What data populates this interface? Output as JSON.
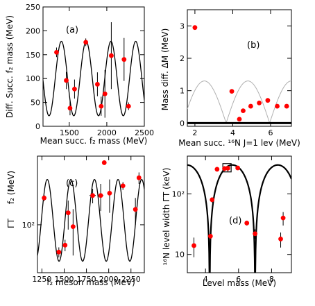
{
  "colors": {
    "points": "#ff0000",
    "curve": "#000000",
    "curve_light": "#b0b0b0",
    "errorbars": "#000000"
  },
  "chart_data": [
    {
      "id": "a",
      "type": "scatter",
      "panel_label": "(a)",
      "xlabel": "Mean succ. f₂ mass (MeV)",
      "ylabel": "Diff. Succ. f₂ mass (MeV)",
      "xlim": [
        1150,
        2500
      ],
      "ylim": [
        0,
        250
      ],
      "xticks": [
        1500,
        2000,
        2500
      ],
      "xtick_labels": [
        "1500",
        "2000",
        "2500"
      ],
      "yticks": [
        0,
        50,
        100,
        150,
        200,
        250
      ],
      "ytick_labels": [
        "0",
        "50",
        "100",
        "150",
        "200",
        "250"
      ],
      "curve": {
        "style": "dark",
        "kind": "cosine",
        "mid": 100,
        "amp": 78,
        "period": 330,
        "phase_x": 1725
      },
      "points": [
        {
          "x": 1330,
          "y": 155,
          "err": 10
        },
        {
          "x": 1460,
          "y": 96,
          "err": 18
        },
        {
          "x": 1510,
          "y": 38,
          "err": 15
        },
        {
          "x": 1570,
          "y": 78,
          "err": 20
        },
        {
          "x": 1720,
          "y": 176,
          "err": 8
        },
        {
          "x": 1875,
          "y": 88,
          "err": 25
        },
        {
          "x": 1925,
          "y": 42,
          "err": 20
        },
        {
          "x": 1975,
          "y": 68,
          "err": 50
        },
        {
          "x": 2060,
          "y": 148,
          "err": 70
        },
        {
          "x": 2230,
          "y": 140,
          "err": 45
        },
        {
          "x": 2290,
          "y": 42,
          "err": 8
        }
      ]
    },
    {
      "id": "b",
      "type": "scatter",
      "panel_label": "(b)",
      "xlabel": "Mean succ. ¹⁶N J=1 lev (MeV)",
      "ylabel": "Mass diff. ΔM (MeV)",
      "xlim": [
        1.6,
        7.1
      ],
      "ylim": [
        -0.1,
        3.5
      ],
      "xticks": [
        2,
        4,
        6
      ],
      "xtick_labels": [
        "2",
        "4",
        "6"
      ],
      "yticks": [
        0,
        1,
        2,
        3
      ],
      "ytick_labels": [
        "0",
        "1",
        "2",
        "3"
      ],
      "curve": {
        "style": "light",
        "kind": "abs-sine",
        "amp": 1.3,
        "period": 2.3,
        "zero_x": 1.35
      },
      "baseline": 0,
      "points": [
        {
          "x": 2.0,
          "y": 2.95
        },
        {
          "x": 3.95,
          "y": 0.98
        },
        {
          "x": 4.35,
          "y": 0.12
        },
        {
          "x": 4.55,
          "y": 0.38
        },
        {
          "x": 4.95,
          "y": 0.52
        },
        {
          "x": 5.4,
          "y": 0.62
        },
        {
          "x": 5.85,
          "y": 0.7
        },
        {
          "x": 6.35,
          "y": 0.52
        },
        {
          "x": 6.85,
          "y": 0.52
        }
      ]
    },
    {
      "id": "c",
      "type": "scatter",
      "panel_label": "(c)",
      "xlabel": "f₂ meson mass (MeV)",
      "ylabel_main": "f₂ (MeV)",
      "ylabel_sym": "ΓT",
      "xlim": [
        1200,
        2400
      ],
      "ylim": [
        35,
        450
      ],
      "yscale": "log",
      "xticks": [
        1250,
        1500,
        1750,
        2000,
        2250
      ],
      "xtick_labels": [
        "1250",
        "1500",
        "1750",
        "2000",
        "2250"
      ],
      "yticks": [
        100
      ],
      "ytick_labels": [
        "10²"
      ],
      "curve": {
        "style": "dark",
        "kind": "cosine-log",
        "lo": 45,
        "hi": 270,
        "period": 265,
        "phase_x": 1310
      },
      "points": [
        {
          "x": 1275,
          "y": 180,
          "err": 12
        },
        {
          "x": 1440,
          "y": 55,
          "err": 6
        },
        {
          "x": 1510,
          "y": 64,
          "err": 8
        },
        {
          "x": 1545,
          "y": 130,
          "err": 40
        },
        {
          "x": 1600,
          "y": 96,
          "err": 45,
          "xerr": 15
        },
        {
          "x": 1820,
          "y": 190,
          "err": 30,
          "xerr": 35
        },
        {
          "x": 1910,
          "y": 190,
          "err": 55,
          "xerr": 30
        },
        {
          "x": 1950,
          "y": 390,
          "err": 12
        },
        {
          "x": 2010,
          "y": 200,
          "err": 70,
          "xerr": 25
        },
        {
          "x": 2160,
          "y": 235,
          "err": 20
        },
        {
          "x": 2300,
          "y": 140,
          "err": 40
        },
        {
          "x": 2340,
          "y": 280,
          "err": 35
        }
      ]
    },
    {
      "id": "d",
      "type": "scatter",
      "panel_label": "(d)",
      "xlabel": "Level mass (MeV)",
      "ylabel": "¹⁶N level  width  ΓT  (keV)",
      "xlim": [
        2.9,
        9.2
      ],
      "ylim": [
        5,
        420
      ],
      "yscale": "log",
      "xticks": [
        4,
        6,
        8
      ],
      "xtick_labels": [
        "4",
        "6",
        "8"
      ],
      "yticks": [
        10,
        100
      ],
      "ytick_labels": [
        "10",
        "10²"
      ],
      "curve": {
        "style": "thick",
        "kind": "abs-sine-log",
        "amp": 300,
        "period": 2.75,
        "zero_x": 4.25
      },
      "highlight": {
        "x": 5.3,
        "y": 270
      },
      "points": [
        {
          "x": 3.3,
          "y": 14,
          "err": 5
        },
        {
          "x": 4.3,
          "y": 20,
          "err": 2
        },
        {
          "x": 4.4,
          "y": 80,
          "err": 8
        },
        {
          "x": 4.7,
          "y": 255,
          "err": 20
        },
        {
          "x": 5.15,
          "y": 262,
          "err": 25
        },
        {
          "x": 5.35,
          "y": 265,
          "err": 30
        },
        {
          "x": 5.95,
          "y": 268,
          "err": 15
        },
        {
          "x": 6.5,
          "y": 33,
          "err": 3
        },
        {
          "x": 7.0,
          "y": 22,
          "err": 4
        },
        {
          "x": 8.55,
          "y": 18,
          "err": 5
        },
        {
          "x": 8.7,
          "y": 40,
          "err": 10
        }
      ]
    }
  ]
}
